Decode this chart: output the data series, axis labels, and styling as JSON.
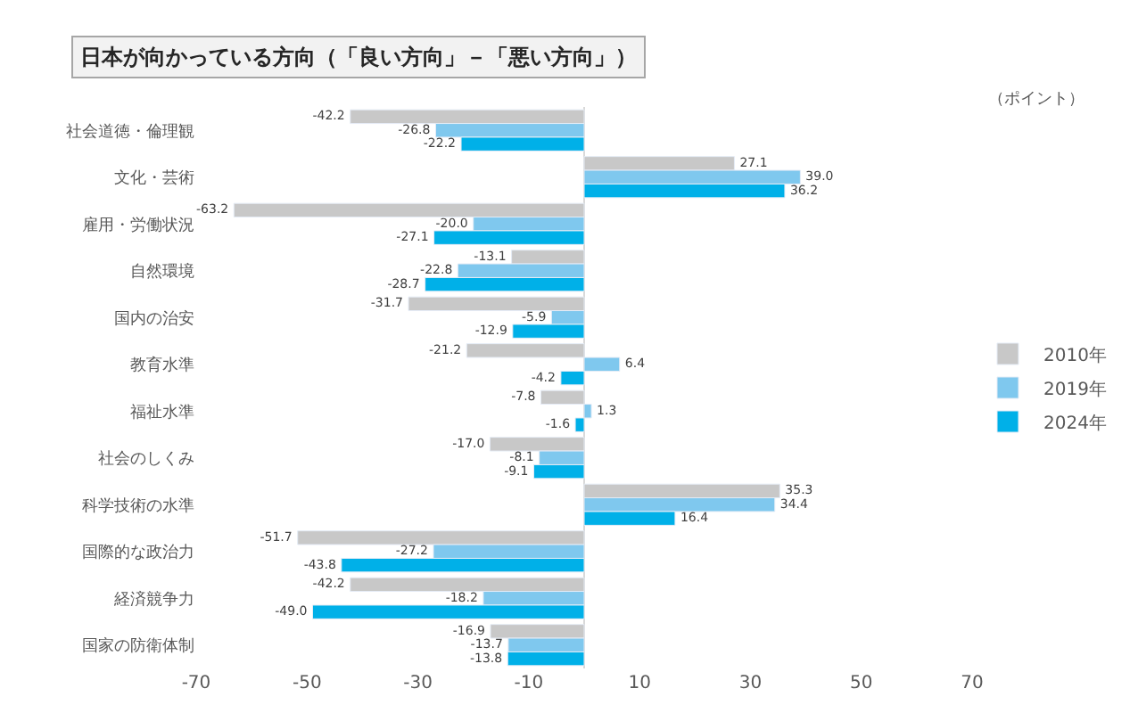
{
  "chart_data": {
    "type": "bar",
    "orientation": "horizontal",
    "title": "日本が向かっている方向（「良い方向」－「悪い方向」）",
    "annotations": [
      "（ポイント）"
    ],
    "categories": [
      "社会道徳・倫理観",
      "文化・芸術",
      "雇用・労働状況",
      "自然環境",
      "国内の治安",
      "教育水準",
      "福祉水準",
      "社会のしくみ",
      "科学技術の水準",
      "国際的な政治力",
      "経済競争力",
      "国家の防衛体制"
    ],
    "series": [
      {
        "name": "2010年",
        "color": "#c8c8c8",
        "values": [
          -42.2,
          27.1,
          -63.2,
          -13.1,
          -31.7,
          -21.2,
          -7.8,
          -17.0,
          35.3,
          -51.7,
          -42.2,
          -16.9
        ],
        "value_labels": [
          "-42.2",
          "27.1",
          "-63.2",
          "-13.1",
          "-31.7",
          "-21.2",
          "-7.8",
          "-17.0",
          "35.3",
          "-51.7",
          "-42.2",
          "-16.9"
        ]
      },
      {
        "name": "2019年",
        "color": "#7fc8ee",
        "values": [
          -26.8,
          39.0,
          -20.0,
          -22.8,
          -5.9,
          6.4,
          1.3,
          -8.1,
          34.4,
          -27.2,
          -18.2,
          -13.7
        ],
        "value_labels": [
          "-26.8",
          "39.0",
          "-20.0",
          "-22.8",
          "-5.9",
          "6.4",
          "1.3",
          "-8.1",
          "34.4",
          "-27.2",
          "-18.2",
          "-13.7"
        ]
      },
      {
        "name": "2024年",
        "color": "#00b0e8",
        "values": [
          -22.2,
          36.2,
          -27.1,
          -28.7,
          -12.9,
          -4.2,
          -1.6,
          -9.1,
          16.4,
          -43.8,
          -49.0,
          -13.8
        ],
        "value_labels": [
          "-22.2",
          "36.2",
          "-27.1",
          "-28.7",
          "-12.9",
          "-4.2",
          "-1.6",
          "-9.1",
          "16.4",
          "-43.8",
          "-49.0",
          "-13.8"
        ]
      }
    ],
    "xlim": [
      -70,
      70
    ],
    "xticks": [
      -70,
      -50,
      -30,
      -10,
      10,
      30,
      50,
      70
    ],
    "legend": "right"
  }
}
